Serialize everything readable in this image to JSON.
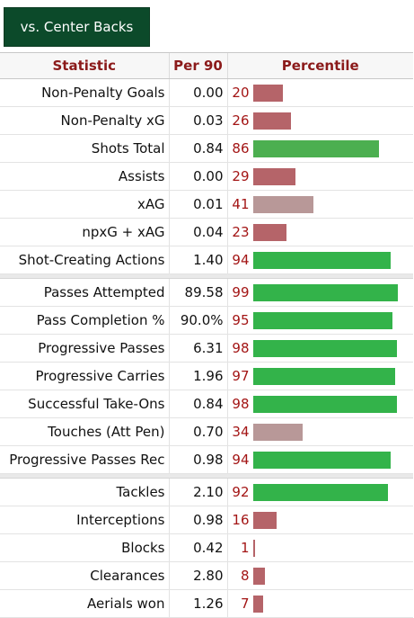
{
  "tab": {
    "label": "vs. Center Backs"
  },
  "headers": {
    "statistic": "Statistic",
    "per90": "Per 90",
    "percentile": "Percentile"
  },
  "colors": {
    "high": "#4caf50",
    "higher": "#33b34a",
    "low": "#b56469",
    "mid": "#b89898",
    "pct_text": "#a31515"
  },
  "groups": [
    {
      "rows": [
        {
          "stat": "Non-Penalty Goals",
          "per90": "0.00",
          "pct": "20",
          "level": 20,
          "color": "low"
        },
        {
          "stat": "Non-Penalty xG",
          "per90": "0.03",
          "pct": "26",
          "level": 26,
          "color": "low"
        },
        {
          "stat": "Shots Total",
          "per90": "0.84",
          "pct": "86",
          "level": 86,
          "color": "high"
        },
        {
          "stat": "Assists",
          "per90": "0.00",
          "pct": "29",
          "level": 29,
          "color": "low"
        },
        {
          "stat": "xAG",
          "per90": "0.01",
          "pct": "41",
          "level": 41,
          "color": "mid"
        },
        {
          "stat": "npxG + xAG",
          "per90": "0.04",
          "pct": "23",
          "level": 23,
          "color": "low"
        },
        {
          "stat": "Shot-Creating Actions",
          "per90": "1.40",
          "pct": "94",
          "level": 94,
          "color": "higher"
        }
      ]
    },
    {
      "rows": [
        {
          "stat": "Passes Attempted",
          "per90": "89.58",
          "pct": "99",
          "level": 99,
          "color": "higher"
        },
        {
          "stat": "Pass Completion %",
          "per90": "90.0%",
          "pct": "95",
          "level": 95,
          "color": "higher"
        },
        {
          "stat": "Progressive Passes",
          "per90": "6.31",
          "pct": "98",
          "level": 98,
          "color": "higher"
        },
        {
          "stat": "Progressive Carries",
          "per90": "1.96",
          "pct": "97",
          "level": 97,
          "color": "higher"
        },
        {
          "stat": "Successful Take-Ons",
          "per90": "0.84",
          "pct": "98",
          "level": 98,
          "color": "higher"
        },
        {
          "stat": "Touches (Att Pen)",
          "per90": "0.70",
          "pct": "34",
          "level": 34,
          "color": "mid"
        },
        {
          "stat": "Progressive Passes Rec",
          "per90": "0.98",
          "pct": "94",
          "level": 94,
          "color": "higher"
        }
      ]
    },
    {
      "rows": [
        {
          "stat": "Tackles",
          "per90": "2.10",
          "pct": "92",
          "level": 92,
          "color": "higher"
        },
        {
          "stat": "Interceptions",
          "per90": "0.98",
          "pct": "16",
          "level": 16,
          "color": "low"
        },
        {
          "stat": "Blocks",
          "per90": "0.42",
          "pct": "1",
          "level": 1,
          "color": "low"
        },
        {
          "stat": "Clearances",
          "per90": "2.80",
          "pct": "8",
          "level": 8,
          "color": "low"
        },
        {
          "stat": "Aerials won",
          "per90": "1.26",
          "pct": "7",
          "level": 7,
          "color": "low"
        }
      ]
    }
  ]
}
